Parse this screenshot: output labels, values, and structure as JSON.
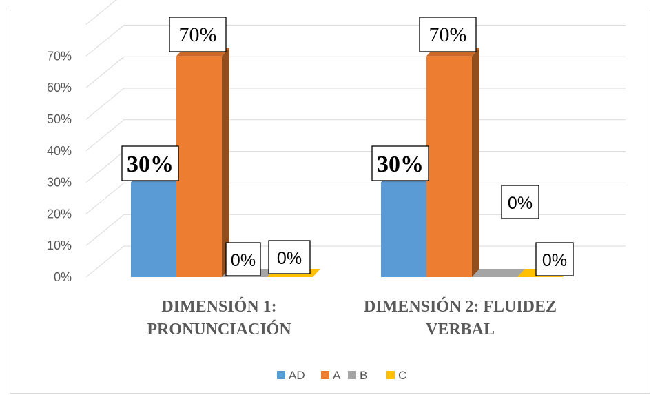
{
  "chart_data": {
    "type": "bar",
    "title": "",
    "xlabel": "",
    "ylabel": "",
    "categories": [
      "DIMENSIÓN 1: PRONUNCIACIÓN",
      "DIMENSIÓN 2: FLUIDEZ VERBAL"
    ],
    "category_lines": [
      [
        "DIMENSIÓN 1:",
        "PRONUNCIACIÓN"
      ],
      [
        "DIMENSIÓN 2: FLUIDEZ",
        "VERBAL"
      ]
    ],
    "series": [
      {
        "name": "AD",
        "values": [
          30,
          30
        ],
        "labels": [
          "30%",
          "30%"
        ],
        "color": "#5B9BD5"
      },
      {
        "name": "A",
        "values": [
          70,
          70
        ],
        "labels": [
          "70%",
          "70%"
        ],
        "color": "#ED7D31"
      },
      {
        "name": "B",
        "values": [
          0,
          0
        ],
        "labels": [
          "0%",
          "0%"
        ],
        "color": "#A5A5A5"
      },
      {
        "name": "C",
        "values": [
          0,
          0
        ],
        "labels": [
          "0%",
          "0%"
        ],
        "color": "#FFC000"
      }
    ],
    "ylim": [
      0,
      70
    ],
    "yticks": [
      "0%",
      "10%",
      "20%",
      "30%",
      "40%",
      "50%",
      "60%",
      "70%"
    ],
    "grid": true,
    "style": "3d-clustered-column",
    "legend_position": "bottom"
  }
}
